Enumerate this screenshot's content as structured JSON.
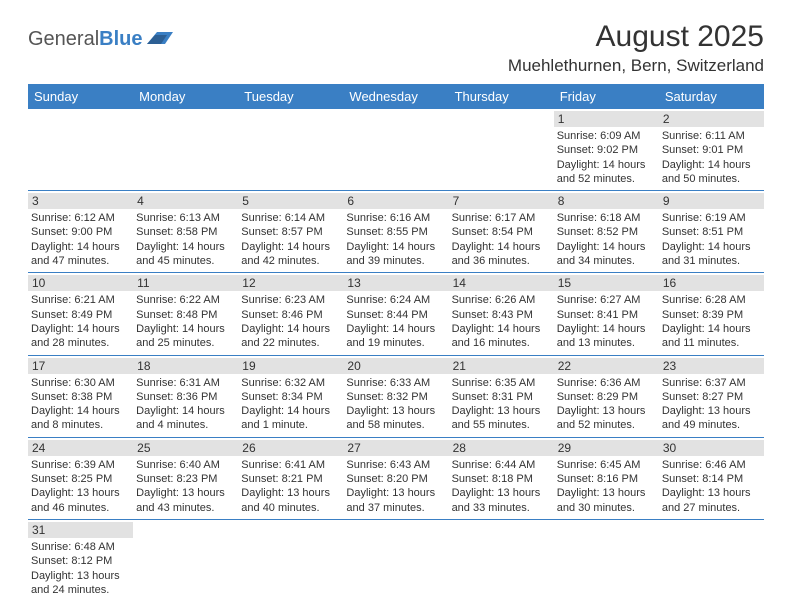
{
  "header": {
    "logo_general": "General",
    "logo_blue": "Blue",
    "month_title": "August 2025",
    "location": "Muehlethurnen, Bern, Switzerland"
  },
  "theme": {
    "header_bg": "#3a7fc4",
    "daynum_bg": "#e2e2e2",
    "border_color": "#3a7fc4"
  },
  "weekdays": [
    "Sunday",
    "Monday",
    "Tuesday",
    "Wednesday",
    "Thursday",
    "Friday",
    "Saturday"
  ],
  "weeks": [
    [
      null,
      null,
      null,
      null,
      null,
      {
        "day": "1",
        "sunrise": "Sunrise: 6:09 AM",
        "sunset": "Sunset: 9:02 PM",
        "daylight": "Daylight: 14 hours and 52 minutes."
      },
      {
        "day": "2",
        "sunrise": "Sunrise: 6:11 AM",
        "sunset": "Sunset: 9:01 PM",
        "daylight": "Daylight: 14 hours and 50 minutes."
      }
    ],
    [
      {
        "day": "3",
        "sunrise": "Sunrise: 6:12 AM",
        "sunset": "Sunset: 9:00 PM",
        "daylight": "Daylight: 14 hours and 47 minutes."
      },
      {
        "day": "4",
        "sunrise": "Sunrise: 6:13 AM",
        "sunset": "Sunset: 8:58 PM",
        "daylight": "Daylight: 14 hours and 45 minutes."
      },
      {
        "day": "5",
        "sunrise": "Sunrise: 6:14 AM",
        "sunset": "Sunset: 8:57 PM",
        "daylight": "Daylight: 14 hours and 42 minutes."
      },
      {
        "day": "6",
        "sunrise": "Sunrise: 6:16 AM",
        "sunset": "Sunset: 8:55 PM",
        "daylight": "Daylight: 14 hours and 39 minutes."
      },
      {
        "day": "7",
        "sunrise": "Sunrise: 6:17 AM",
        "sunset": "Sunset: 8:54 PM",
        "daylight": "Daylight: 14 hours and 36 minutes."
      },
      {
        "day": "8",
        "sunrise": "Sunrise: 6:18 AM",
        "sunset": "Sunset: 8:52 PM",
        "daylight": "Daylight: 14 hours and 34 minutes."
      },
      {
        "day": "9",
        "sunrise": "Sunrise: 6:19 AM",
        "sunset": "Sunset: 8:51 PM",
        "daylight": "Daylight: 14 hours and 31 minutes."
      }
    ],
    [
      {
        "day": "10",
        "sunrise": "Sunrise: 6:21 AM",
        "sunset": "Sunset: 8:49 PM",
        "daylight": "Daylight: 14 hours and 28 minutes."
      },
      {
        "day": "11",
        "sunrise": "Sunrise: 6:22 AM",
        "sunset": "Sunset: 8:48 PM",
        "daylight": "Daylight: 14 hours and 25 minutes."
      },
      {
        "day": "12",
        "sunrise": "Sunrise: 6:23 AM",
        "sunset": "Sunset: 8:46 PM",
        "daylight": "Daylight: 14 hours and 22 minutes."
      },
      {
        "day": "13",
        "sunrise": "Sunrise: 6:24 AM",
        "sunset": "Sunset: 8:44 PM",
        "daylight": "Daylight: 14 hours and 19 minutes."
      },
      {
        "day": "14",
        "sunrise": "Sunrise: 6:26 AM",
        "sunset": "Sunset: 8:43 PM",
        "daylight": "Daylight: 14 hours and 16 minutes."
      },
      {
        "day": "15",
        "sunrise": "Sunrise: 6:27 AM",
        "sunset": "Sunset: 8:41 PM",
        "daylight": "Daylight: 14 hours and 13 minutes."
      },
      {
        "day": "16",
        "sunrise": "Sunrise: 6:28 AM",
        "sunset": "Sunset: 8:39 PM",
        "daylight": "Daylight: 14 hours and 11 minutes."
      }
    ],
    [
      {
        "day": "17",
        "sunrise": "Sunrise: 6:30 AM",
        "sunset": "Sunset: 8:38 PM",
        "daylight": "Daylight: 14 hours and 8 minutes."
      },
      {
        "day": "18",
        "sunrise": "Sunrise: 6:31 AM",
        "sunset": "Sunset: 8:36 PM",
        "daylight": "Daylight: 14 hours and 4 minutes."
      },
      {
        "day": "19",
        "sunrise": "Sunrise: 6:32 AM",
        "sunset": "Sunset: 8:34 PM",
        "daylight": "Daylight: 14 hours and 1 minute."
      },
      {
        "day": "20",
        "sunrise": "Sunrise: 6:33 AM",
        "sunset": "Sunset: 8:32 PM",
        "daylight": "Daylight: 13 hours and 58 minutes."
      },
      {
        "day": "21",
        "sunrise": "Sunrise: 6:35 AM",
        "sunset": "Sunset: 8:31 PM",
        "daylight": "Daylight: 13 hours and 55 minutes."
      },
      {
        "day": "22",
        "sunrise": "Sunrise: 6:36 AM",
        "sunset": "Sunset: 8:29 PM",
        "daylight": "Daylight: 13 hours and 52 minutes."
      },
      {
        "day": "23",
        "sunrise": "Sunrise: 6:37 AM",
        "sunset": "Sunset: 8:27 PM",
        "daylight": "Daylight: 13 hours and 49 minutes."
      }
    ],
    [
      {
        "day": "24",
        "sunrise": "Sunrise: 6:39 AM",
        "sunset": "Sunset: 8:25 PM",
        "daylight": "Daylight: 13 hours and 46 minutes."
      },
      {
        "day": "25",
        "sunrise": "Sunrise: 6:40 AM",
        "sunset": "Sunset: 8:23 PM",
        "daylight": "Daylight: 13 hours and 43 minutes."
      },
      {
        "day": "26",
        "sunrise": "Sunrise: 6:41 AM",
        "sunset": "Sunset: 8:21 PM",
        "daylight": "Daylight: 13 hours and 40 minutes."
      },
      {
        "day": "27",
        "sunrise": "Sunrise: 6:43 AM",
        "sunset": "Sunset: 8:20 PM",
        "daylight": "Daylight: 13 hours and 37 minutes."
      },
      {
        "day": "28",
        "sunrise": "Sunrise: 6:44 AM",
        "sunset": "Sunset: 8:18 PM",
        "daylight": "Daylight: 13 hours and 33 minutes."
      },
      {
        "day": "29",
        "sunrise": "Sunrise: 6:45 AM",
        "sunset": "Sunset: 8:16 PM",
        "daylight": "Daylight: 13 hours and 30 minutes."
      },
      {
        "day": "30",
        "sunrise": "Sunrise: 6:46 AM",
        "sunset": "Sunset: 8:14 PM",
        "daylight": "Daylight: 13 hours and 27 minutes."
      }
    ],
    [
      {
        "day": "31",
        "sunrise": "Sunrise: 6:48 AM",
        "sunset": "Sunset: 8:12 PM",
        "daylight": "Daylight: 13 hours and 24 minutes."
      },
      null,
      null,
      null,
      null,
      null,
      null
    ]
  ]
}
